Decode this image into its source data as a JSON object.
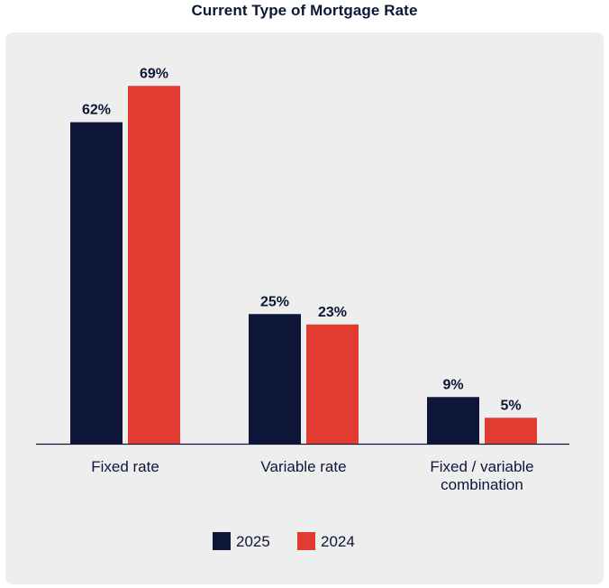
{
  "chart_data": {
    "type": "bar",
    "title": "Current Type of Mortgage Rate",
    "categories": [
      [
        "Fixed rate"
      ],
      [
        "Variable rate"
      ],
      [
        "Fixed / variable",
        "combination"
      ]
    ],
    "series": [
      {
        "name": "2025",
        "color": "#0d1638",
        "values": [
          62,
          25,
          9
        ],
        "labels": [
          "62%",
          "25%",
          "9%"
        ]
      },
      {
        "name": "2024",
        "color": "#e03c31",
        "values": [
          69,
          23,
          5
        ],
        "labels": [
          "69%",
          "23%",
          "5%"
        ]
      }
    ],
    "xlabel": "",
    "ylabel": "",
    "ylim": [
      0,
      70
    ],
    "grid": false,
    "legend": "bottom-center"
  }
}
